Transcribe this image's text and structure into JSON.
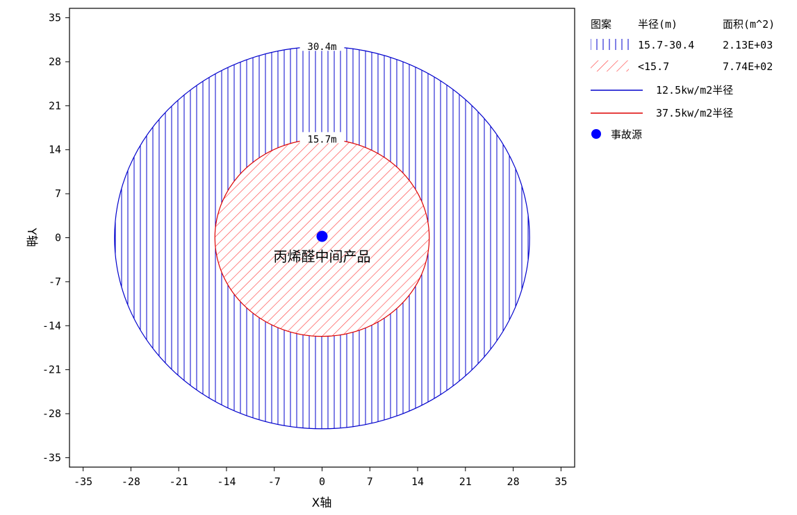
{
  "chart_data": {
    "type": "scatter",
    "title": "",
    "xlabel": "X轴",
    "ylabel": "Y轴",
    "xlim": [
      -37,
      37
    ],
    "ylim": [
      -36.5,
      36.5
    ],
    "xticks": [
      -35,
      -28,
      -21,
      -14,
      -7,
      0,
      7,
      14,
      21,
      28,
      35
    ],
    "yticks": [
      -35,
      -28,
      -21,
      -14,
      -7,
      0,
      7,
      14,
      21,
      28,
      35
    ],
    "tick_labels": [
      "-35",
      "-28",
      "-21",
      "-14",
      "-7",
      "0",
      "7",
      "14",
      "21",
      "28",
      "35"
    ],
    "grid": false,
    "source": {
      "x": 0,
      "y": 0,
      "label": "丙烯醛中间产品"
    },
    "zones": [
      {
        "name": "12.5kw/m2半径",
        "radius": 30.4,
        "label": "30.4m",
        "color": "#0000cc",
        "hatch": "vertical"
      },
      {
        "name": "37.5kw/m2半径",
        "radius": 15.7,
        "label": "15.7m",
        "color": "#dd0000",
        "hatch": "diagonal"
      }
    ],
    "legend": {
      "position": "right",
      "header": {
        "pattern": "图案",
        "radius": "半径(m)",
        "area": "面积(m^2)"
      },
      "rows": [
        {
          "range": "15.7-30.4",
          "area": "2.13E+03",
          "color": "#0000cc",
          "hatch": "vertical"
        },
        {
          "range": "<15.7",
          "area": "7.74E+02",
          "color": "#dd0000",
          "hatch": "diagonal"
        }
      ],
      "lines": [
        {
          "label": "12.5kw/m2半径",
          "color": "#0000cc"
        },
        {
          "label": "37.5kw/m2半径",
          "color": "#dd0000"
        }
      ],
      "marker": {
        "label": "事故源",
        "color": "#0000ff"
      }
    }
  }
}
